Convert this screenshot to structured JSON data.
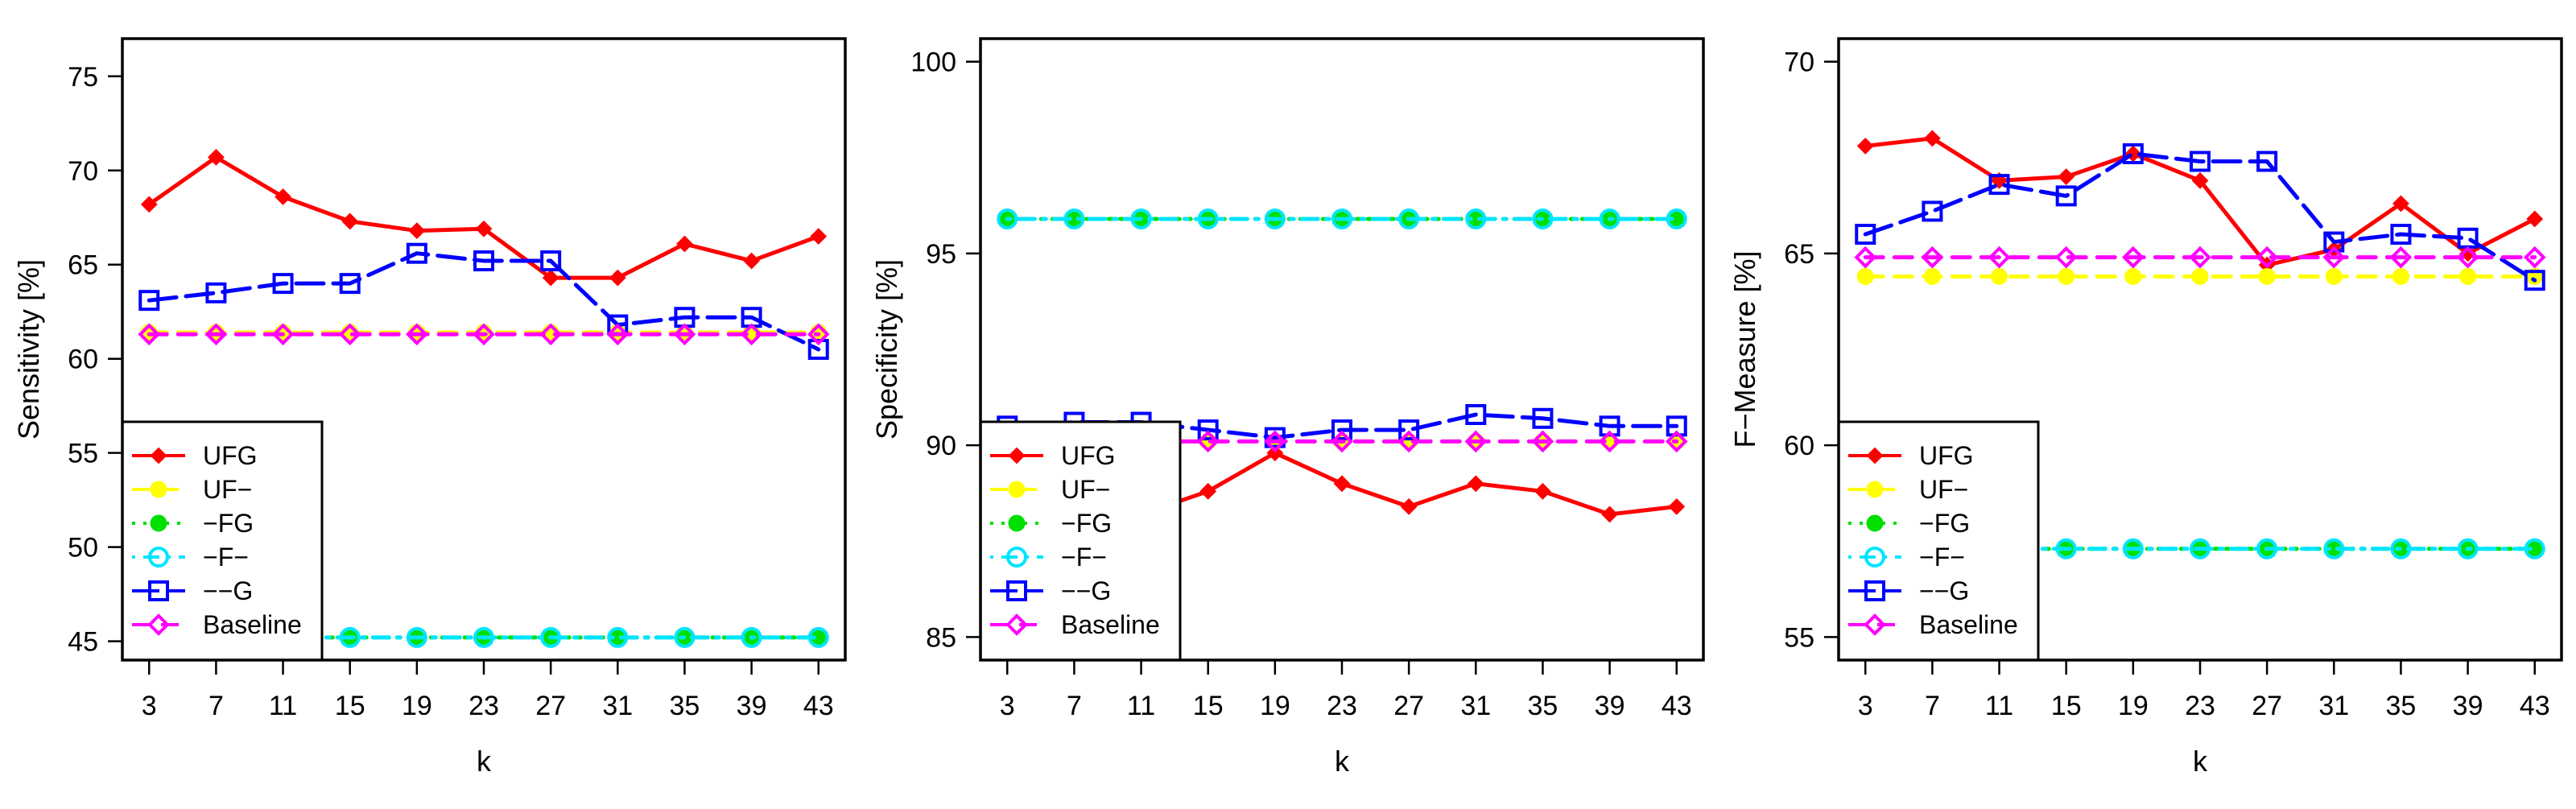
{
  "chart_data": [
    {
      "type": "line",
      "title": "",
      "xlabel": "k",
      "ylabel": "Sensitivity [%]",
      "x": [
        3,
        7,
        11,
        15,
        19,
        23,
        27,
        31,
        35,
        39,
        43
      ],
      "ylim": [
        44,
        77
      ],
      "yticks": [
        45,
        50,
        55,
        60,
        65,
        70,
        75
      ],
      "grid": false,
      "legend_position": "bottom-left",
      "series": [
        {
          "name": "UFG",
          "color": "#ff0000",
          "marker": "diamond-filled",
          "line": "solid",
          "values": [
            68.2,
            70.7,
            68.6,
            67.3,
            66.8,
            66.9,
            64.3,
            64.3,
            66.1,
            65.2,
            66.5
          ]
        },
        {
          "name": "UF−",
          "color": "#ffff00",
          "marker": "circle-filled",
          "line": "dashed",
          "values": [
            61.4,
            61.4,
            61.4,
            61.4,
            61.4,
            61.4,
            61.4,
            61.4,
            61.4,
            61.4,
            61.4
          ]
        },
        {
          "name": "−FG",
          "color": "#00e000",
          "marker": "circle-filled",
          "line": "dotted",
          "values": [
            45.2,
            45.2,
            45.2,
            45.2,
            45.2,
            45.2,
            45.2,
            45.2,
            45.2,
            45.2,
            45.2
          ]
        },
        {
          "name": "−F−",
          "color": "#00e5ff",
          "marker": "circle-open",
          "line": "dotdash",
          "values": [
            45.2,
            45.2,
            45.2,
            45.2,
            45.2,
            45.2,
            45.2,
            45.2,
            45.2,
            45.2,
            45.2
          ]
        },
        {
          "name": "−−G",
          "color": "#0000ff",
          "marker": "square-open",
          "line": "longdash",
          "values": [
            63.1,
            63.5,
            64.0,
            64.0,
            65.6,
            65.2,
            65.2,
            61.8,
            62.2,
            62.2,
            60.5
          ]
        },
        {
          "name": "Baseline",
          "color": "#ff00ff",
          "marker": "diamond-open",
          "line": "dashed",
          "values": [
            61.3,
            61.3,
            61.3,
            61.3,
            61.3,
            61.3,
            61.3,
            61.3,
            61.3,
            61.3,
            61.3
          ]
        }
      ]
    },
    {
      "type": "line",
      "title": "",
      "xlabel": "k",
      "ylabel": "Specificity [%]",
      "x": [
        3,
        7,
        11,
        15,
        19,
        23,
        27,
        31,
        35,
        39,
        43
      ],
      "ylim": [
        84.4,
        100.6
      ],
      "yticks": [
        85,
        90,
        95,
        100
      ],
      "grid": false,
      "legend_position": "bottom-left",
      "series": [
        {
          "name": "UFG",
          "color": "#ff0000",
          "marker": "diamond-filled",
          "line": "solid",
          "values": [
            87.5,
            87.8,
            88.2,
            88.8,
            89.8,
            89.0,
            88.4,
            89.0,
            88.8,
            88.2,
            88.4
          ]
        },
        {
          "name": "UF−",
          "color": "#ffff00",
          "marker": "circle-filled",
          "line": "dashed",
          "values": [
            90.1,
            90.1,
            90.1,
            90.1,
            90.1,
            90.1,
            90.1,
            90.1,
            90.1,
            90.1,
            90.1
          ]
        },
        {
          "name": "−FG",
          "color": "#00e000",
          "marker": "circle-filled",
          "line": "dotted",
          "values": [
            95.9,
            95.9,
            95.9,
            95.9,
            95.9,
            95.9,
            95.9,
            95.9,
            95.9,
            95.9,
            95.9
          ]
        },
        {
          "name": "−F−",
          "color": "#00e5ff",
          "marker": "circle-open",
          "line": "dotdash",
          "values": [
            95.9,
            95.9,
            95.9,
            95.9,
            95.9,
            95.9,
            95.9,
            95.9,
            95.9,
            95.9,
            95.9
          ]
        },
        {
          "name": "−−G",
          "color": "#0000ff",
          "marker": "square-open",
          "line": "longdash",
          "values": [
            90.5,
            90.6,
            90.6,
            90.4,
            90.2,
            90.4,
            90.4,
            90.8,
            90.7,
            90.5,
            90.5
          ]
        },
        {
          "name": "Baseline",
          "color": "#ff00ff",
          "marker": "diamond-open",
          "line": "dashed",
          "values": [
            90.1,
            90.1,
            90.1,
            90.1,
            90.1,
            90.1,
            90.1,
            90.1,
            90.1,
            90.1,
            90.1
          ]
        }
      ]
    },
    {
      "type": "line",
      "title": "",
      "xlabel": "k",
      "ylabel": "F−Measure [%]",
      "x": [
        3,
        7,
        11,
        15,
        19,
        23,
        27,
        31,
        35,
        39,
        43
      ],
      "ylim": [
        54.4,
        70.6
      ],
      "yticks": [
        55,
        60,
        65,
        70
      ],
      "grid": false,
      "legend_position": "bottom-left",
      "series": [
        {
          "name": "UFG",
          "color": "#ff0000",
          "marker": "diamond-filled",
          "line": "solid",
          "values": [
            67.8,
            68.0,
            66.9,
            67.0,
            67.6,
            66.9,
            64.7,
            65.1,
            66.3,
            65.0,
            65.9
          ]
        },
        {
          "name": "UF−",
          "color": "#ffff00",
          "marker": "circle-filled",
          "line": "dashed",
          "values": [
            64.4,
            64.4,
            64.4,
            64.4,
            64.4,
            64.4,
            64.4,
            64.4,
            64.4,
            64.4,
            64.4
          ]
        },
        {
          "name": "−FG",
          "color": "#00e000",
          "marker": "circle-filled",
          "line": "dotted",
          "values": [
            57.3,
            57.3,
            57.3,
            57.3,
            57.3,
            57.3,
            57.3,
            57.3,
            57.3,
            57.3,
            57.3
          ]
        },
        {
          "name": "−F−",
          "color": "#00e5ff",
          "marker": "circle-open",
          "line": "dotdash",
          "values": [
            57.3,
            57.3,
            57.3,
            57.3,
            57.3,
            57.3,
            57.3,
            57.3,
            57.3,
            57.3,
            57.3
          ]
        },
        {
          "name": "−−G",
          "color": "#0000ff",
          "marker": "square-open",
          "line": "longdash",
          "values": [
            65.5,
            66.1,
            66.8,
            66.5,
            67.6,
            67.4,
            67.4,
            65.3,
            65.5,
            65.4,
            64.3
          ]
        },
        {
          "name": "Baseline",
          "color": "#ff00ff",
          "marker": "diamond-open",
          "line": "dashed",
          "values": [
            64.9,
            64.9,
            64.9,
            64.9,
            64.9,
            64.9,
            64.9,
            64.9,
            64.9,
            64.9,
            64.9
          ]
        }
      ]
    }
  ]
}
